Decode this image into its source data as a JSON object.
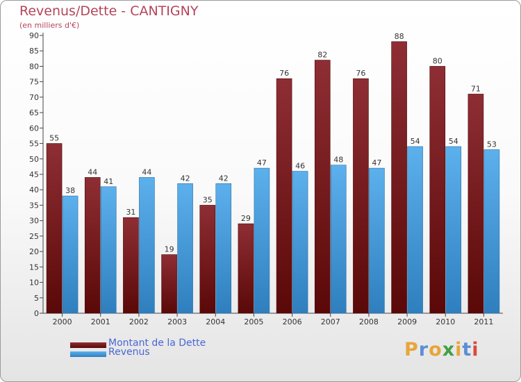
{
  "page": {
    "title": "Revenus/Dette - CANTIGNY",
    "subtitle": "(en milliers d'€)"
  },
  "colors": {
    "dette": "#7a1c22",
    "revenus": "#4aa3e3",
    "label": "#333333",
    "title": "#b4445a",
    "legend_text": "#4a66d6"
  },
  "chart_data": {
    "type": "bar",
    "title": "Revenus/Dette - CANTIGNY",
    "subtitle": "(en milliers d'€)",
    "categories": [
      "2000",
      "2001",
      "2002",
      "2003",
      "2004",
      "2005",
      "2006",
      "2007",
      "2008",
      "2009",
      "2010",
      "2011"
    ],
    "series": [
      {
        "name": "Montant de la Dette",
        "values": [
          55,
          44,
          31,
          19,
          35,
          29,
          76,
          82,
          76,
          88,
          80,
          71
        ]
      },
      {
        "name": "Revenus",
        "values": [
          38,
          41,
          44,
          42,
          42,
          47,
          46,
          48,
          47,
          54,
          54,
          53
        ]
      }
    ],
    "ylim": [
      0,
      90
    ],
    "ytick_step": 5,
    "grid": false,
    "legend_position": "bottom-left",
    "data_labels": true
  },
  "legend": {
    "items": [
      {
        "label": "Montant de la Dette",
        "color": "#7a1c22"
      },
      {
        "label": "Revenus",
        "color": "#4aa3e3"
      }
    ]
  },
  "logo": {
    "text": "Proxiti",
    "letter_colors": [
      "#e8a53a",
      "#5b8fd6",
      "#e8a53a",
      "#43a047",
      "#e8a53a",
      "#5b8fd6",
      "#d94a3a"
    ]
  }
}
